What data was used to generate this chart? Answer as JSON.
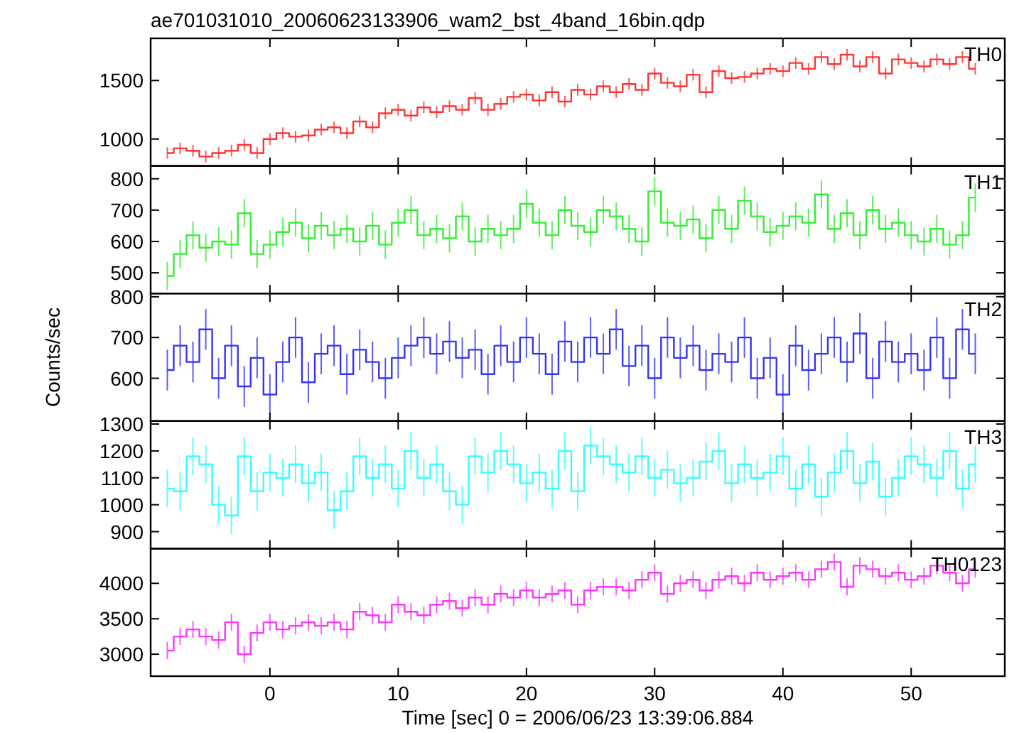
{
  "chart_data": [
    {
      "type": "step",
      "title": "ae701031010_20060623133906_wam2_bst_4band_16bin.qdp",
      "legend": "top right",
      "tick_labels": "y",
      "xlim": [
        -9.3,
        57.3
      ],
      "xticks": [
        0,
        10,
        20,
        30,
        40,
        50
      ],
      "ylim": [
        770,
        1860
      ],
      "yticks": [
        1000,
        1500
      ],
      "x": [
        -8,
        -7,
        -6,
        -5,
        -4,
        -3,
        -2,
        -1,
        0,
        1,
        2,
        3,
        4,
        5,
        6,
        7,
        8,
        9,
        10,
        11,
        12,
        13,
        14,
        15,
        16,
        17,
        18,
        19,
        20,
        21,
        22,
        23,
        24,
        25,
        26,
        27,
        28,
        29,
        30,
        31,
        32,
        33,
        34,
        35,
        36,
        37,
        38,
        39,
        40,
        41,
        42,
        43,
        44,
        45,
        46,
        47,
        48,
        49,
        50,
        51,
        52,
        53,
        54,
        55
      ],
      "series": [
        {
          "name": "TH0",
          "color": "#ff3333",
          "values": [
            880,
            920,
            900,
            850,
            880,
            900,
            950,
            880,
            1000,
            1050,
            1020,
            1030,
            1080,
            1100,
            1050,
            1150,
            1100,
            1220,
            1250,
            1200,
            1270,
            1230,
            1280,
            1250,
            1350,
            1250,
            1300,
            1360,
            1380,
            1330,
            1400,
            1320,
            1420,
            1380,
            1450,
            1400,
            1470,
            1420,
            1560,
            1480,
            1450,
            1550,
            1400,
            1580,
            1520,
            1530,
            1560,
            1600,
            1580,
            1650,
            1600,
            1700,
            1640,
            1720,
            1620,
            1700,
            1560,
            1680,
            1650,
            1620,
            1680,
            1640,
            1700,
            1600
          ],
          "errors": [
            50,
            50,
            50,
            50,
            50,
            50,
            50,
            50,
            50,
            50,
            50,
            50,
            50,
            50,
            50,
            50,
            50,
            50,
            50,
            50,
            50,
            50,
            50,
            50,
            50,
            50,
            50,
            50,
            50,
            50,
            50,
            50,
            50,
            50,
            50,
            50,
            50,
            50,
            50,
            50,
            50,
            50,
            50,
            50,
            50,
            50,
            50,
            50,
            50,
            50,
            50,
            50,
            50,
            50,
            50,
            50,
            50,
            50,
            50,
            50,
            50,
            50,
            50,
            50
          ]
        }
      ]
    },
    {
      "type": "step",
      "legend": "top right",
      "tick_labels": "y",
      "xlim": [
        -9.3,
        57.3
      ],
      "xticks": [
        0,
        10,
        20,
        30,
        40,
        50
      ],
      "ylim": [
        434,
        841
      ],
      "yticks": [
        500,
        600,
        700,
        800
      ],
      "x": [
        -8,
        -7,
        -6,
        -5,
        -4,
        -3,
        -2,
        -1,
        0,
        1,
        2,
        3,
        4,
        5,
        6,
        7,
        8,
        9,
        10,
        11,
        12,
        13,
        14,
        15,
        16,
        17,
        18,
        19,
        20,
        21,
        22,
        23,
        24,
        25,
        26,
        27,
        28,
        29,
        30,
        31,
        32,
        33,
        34,
        35,
        36,
        37,
        38,
        39,
        40,
        41,
        42,
        43,
        44,
        45,
        46,
        47,
        48,
        49,
        50,
        51,
        52,
        53,
        54,
        55
      ],
      "series": [
        {
          "name": "TH1",
          "color": "#33ee33",
          "values": [
            490,
            560,
            620,
            580,
            600,
            590,
            690,
            560,
            590,
            630,
            660,
            610,
            650,
            620,
            640,
            600,
            650,
            590,
            660,
            700,
            620,
            640,
            610,
            680,
            600,
            640,
            620,
            640,
            720,
            660,
            620,
            700,
            650,
            630,
            700,
            680,
            640,
            600,
            760,
            660,
            650,
            670,
            610,
            700,
            640,
            730,
            680,
            630,
            650,
            680,
            660,
            750,
            640,
            690,
            620,
            700,
            640,
            660,
            620,
            600,
            640,
            590,
            620,
            740
          ],
          "errors": [
            45,
            45,
            45,
            45,
            45,
            45,
            45,
            45,
            45,
            45,
            45,
            45,
            45,
            45,
            45,
            45,
            45,
            45,
            45,
            45,
            45,
            45,
            45,
            45,
            45,
            45,
            45,
            45,
            45,
            45,
            45,
            45,
            45,
            45,
            45,
            45,
            45,
            45,
            45,
            45,
            45,
            45,
            45,
            45,
            45,
            45,
            45,
            45,
            45,
            45,
            45,
            45,
            45,
            45,
            45,
            45,
            45,
            45,
            45,
            45,
            45,
            45,
            45,
            45
          ]
        }
      ]
    },
    {
      "type": "step",
      "ylabel": "Counts/sec",
      "legend": "top right",
      "tick_labels": "y",
      "xlim": [
        -9.3,
        57.3
      ],
      "xticks": [
        0,
        10,
        20,
        30,
        40,
        50
      ],
      "ylim": [
        495,
        808
      ],
      "yticks": [
        600,
        700,
        800
      ],
      "x": [
        -8,
        -7,
        -6,
        -5,
        -4,
        -3,
        -2,
        -1,
        0,
        1,
        2,
        3,
        4,
        5,
        6,
        7,
        8,
        9,
        10,
        11,
        12,
        13,
        14,
        15,
        16,
        17,
        18,
        19,
        20,
        21,
        22,
        23,
        24,
        25,
        26,
        27,
        28,
        29,
        30,
        31,
        32,
        33,
        34,
        35,
        36,
        37,
        38,
        39,
        40,
        41,
        42,
        43,
        44,
        45,
        46,
        47,
        48,
        49,
        50,
        51,
        52,
        53,
        54,
        55
      ],
      "series": [
        {
          "name": "TH2",
          "color": "#3333ff",
          "values": [
            620,
            680,
            640,
            720,
            600,
            680,
            580,
            650,
            560,
            640,
            700,
            590,
            660,
            680,
            610,
            670,
            640,
            600,
            650,
            680,
            700,
            660,
            690,
            650,
            670,
            610,
            680,
            640,
            700,
            660,
            610,
            690,
            640,
            700,
            660,
            720,
            630,
            680,
            600,
            700,
            650,
            680,
            620,
            660,
            640,
            700,
            600,
            650,
            560,
            680,
            620,
            660,
            700,
            640,
            710,
            600,
            690,
            640,
            660,
            620,
            700,
            600,
            720,
            660
          ],
          "errors": [
            50,
            50,
            50,
            50,
            50,
            50,
            50,
            50,
            50,
            50,
            50,
            50,
            50,
            50,
            50,
            50,
            50,
            50,
            50,
            50,
            50,
            50,
            50,
            50,
            50,
            50,
            50,
            50,
            50,
            50,
            50,
            50,
            50,
            50,
            50,
            50,
            50,
            50,
            50,
            50,
            50,
            50,
            50,
            50,
            50,
            50,
            50,
            50,
            50,
            50,
            50,
            50,
            50,
            50,
            50,
            50,
            50,
            50,
            50,
            50,
            50,
            50,
            50,
            50
          ]
        }
      ]
    },
    {
      "type": "step",
      "legend": "top right",
      "tick_labels": "y",
      "xlim": [
        -9.3,
        57.3
      ],
      "xticks": [
        0,
        10,
        20,
        30,
        40,
        50
      ],
      "ylim": [
        837,
        1311
      ],
      "yticks": [
        900,
        1000,
        1100,
        1200,
        1300
      ],
      "x": [
        -8,
        -7,
        -6,
        -5,
        -4,
        -3,
        -2,
        -1,
        0,
        1,
        2,
        3,
        4,
        5,
        6,
        7,
        8,
        9,
        10,
        11,
        12,
        13,
        14,
        15,
        16,
        17,
        18,
        19,
        20,
        21,
        22,
        23,
        24,
        25,
        26,
        27,
        28,
        29,
        30,
        31,
        32,
        33,
        34,
        35,
        36,
        37,
        38,
        39,
        40,
        41,
        42,
        43,
        44,
        45,
        46,
        47,
        48,
        49,
        50,
        51,
        52,
        53,
        54,
        55
      ],
      "series": [
        {
          "name": "TH3",
          "color": "#33ffff",
          "values": [
            1060,
            1050,
            1180,
            1150,
            1000,
            960,
            1180,
            1050,
            1120,
            1100,
            1150,
            1080,
            1120,
            980,
            1050,
            1180,
            1100,
            1150,
            1060,
            1200,
            1100,
            1150,
            1050,
            1000,
            1180,
            1120,
            1200,
            1150,
            1080,
            1120,
            1060,
            1200,
            1050,
            1220,
            1180,
            1150,
            1120,
            1180,
            1100,
            1130,
            1080,
            1100,
            1160,
            1200,
            1080,
            1150,
            1100,
            1120,
            1180,
            1060,
            1150,
            1030,
            1120,
            1200,
            1080,
            1160,
            1030,
            1100,
            1180,
            1150,
            1100,
            1200,
            1060,
            1150
          ],
          "errors": [
            70,
            70,
            70,
            70,
            70,
            70,
            70,
            70,
            70,
            70,
            70,
            70,
            70,
            70,
            70,
            70,
            70,
            70,
            70,
            70,
            70,
            70,
            70,
            70,
            70,
            70,
            70,
            70,
            70,
            70,
            70,
            70,
            70,
            70,
            70,
            70,
            70,
            70,
            70,
            70,
            70,
            70,
            70,
            70,
            70,
            70,
            70,
            70,
            70,
            70,
            70,
            70,
            70,
            70,
            70,
            70,
            70,
            70,
            70,
            70,
            70,
            70,
            70,
            70
          ]
        }
      ]
    },
    {
      "type": "step",
      "xlabel": "Time [sec] 0 = 2006/06/23 13:39:06.884",
      "legend": "top right",
      "xlim": [
        -9.3,
        57.3
      ],
      "xticks": [
        0,
        10,
        20,
        30,
        40,
        50
      ],
      "ylim": [
        2690,
        4490
      ],
      "yticks": [
        3000,
        3500,
        4000
      ],
      "x": [
        -8,
        -7,
        -6,
        -5,
        -4,
        -3,
        -2,
        -1,
        0,
        1,
        2,
        3,
        4,
        5,
        6,
        7,
        8,
        9,
        10,
        11,
        12,
        13,
        14,
        15,
        16,
        17,
        18,
        19,
        20,
        21,
        22,
        23,
        24,
        25,
        26,
        27,
        28,
        29,
        30,
        31,
        32,
        33,
        34,
        35,
        36,
        37,
        38,
        39,
        40,
        41,
        42,
        43,
        44,
        45,
        46,
        47,
        48,
        49,
        50,
        51,
        52,
        53,
        54,
        55
      ],
      "series": [
        {
          "name": "TH0123",
          "color": "#ff33ff",
          "values": [
            3050,
            3250,
            3350,
            3250,
            3200,
            3450,
            3000,
            3300,
            3450,
            3350,
            3400,
            3450,
            3400,
            3450,
            3350,
            3600,
            3550,
            3450,
            3700,
            3600,
            3550,
            3700,
            3750,
            3650,
            3800,
            3700,
            3850,
            3800,
            3900,
            3800,
            3850,
            3900,
            3700,
            3900,
            3950,
            3950,
            3900,
            4050,
            4150,
            3850,
            4000,
            4050,
            3900,
            4050,
            4100,
            4000,
            4150,
            4050,
            4100,
            4150,
            4050,
            4200,
            4300,
            3950,
            4250,
            4200,
            4100,
            4150,
            4050,
            4100,
            4250,
            4150,
            4000,
            4200
          ],
          "errors": [
            120,
            120,
            120,
            120,
            120,
            120,
            120,
            120,
            120,
            120,
            120,
            120,
            120,
            120,
            120,
            120,
            120,
            120,
            120,
            120,
            120,
            120,
            120,
            120,
            120,
            120,
            120,
            120,
            120,
            120,
            120,
            120,
            120,
            120,
            120,
            120,
            120,
            120,
            120,
            120,
            120,
            120,
            120,
            120,
            120,
            120,
            120,
            120,
            120,
            120,
            120,
            120,
            120,
            120,
            120,
            120,
            120,
            120,
            120,
            120,
            120,
            120,
            120,
            120
          ]
        }
      ]
    }
  ]
}
